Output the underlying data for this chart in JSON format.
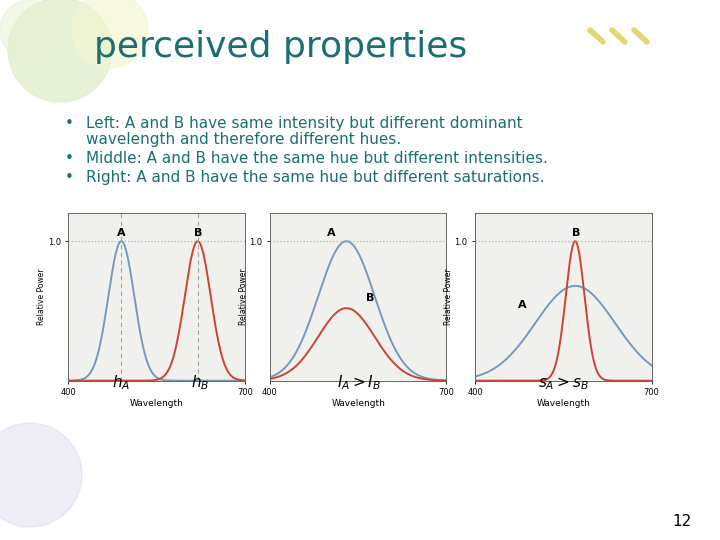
{
  "title": "perceived properties",
  "title_color": "#1a7070",
  "title_fontsize": 26,
  "bullets": [
    [
      "Left: A and B have same intensity but different dominant",
      "wavelength and therefore different hues."
    ],
    [
      "Middle: A and B have the same hue but different intensities."
    ],
    [
      "Right: A and B have the same hue but different saturations."
    ]
  ],
  "bullet_color": "#1a7070",
  "bullet_fontsize": 11,
  "bg_color": "#ffffff",
  "page_number": "12",
  "blue_color": "#7799bb",
  "red_color": "#cc4433",
  "dashed_line_color": "#999999",
  "dotted_line_color": "#aaaaaa",
  "xlabel": "Wavelength",
  "ylabel": "Relative Power",
  "chart_facecolor": "#f0f0ec"
}
